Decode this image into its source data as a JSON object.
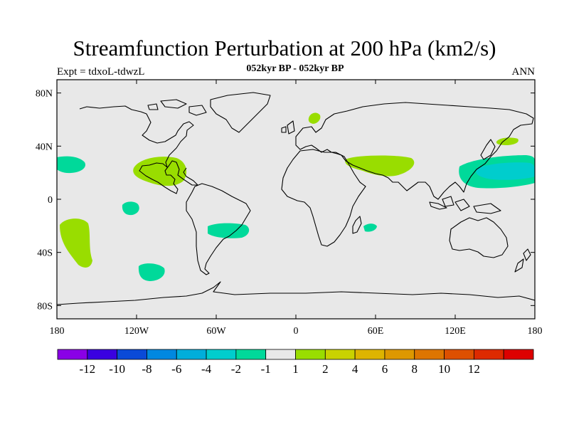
{
  "title": "Streamfunction Perturbation at 200 hPa (km2/s)",
  "left_label": "Expt = tdxoL-tdwzL",
  "center_label": "052kyr BP - 052kyr BP",
  "right_label": "ANN",
  "map": {
    "projection": "cylindrical-equidistant",
    "lon_range": [
      -180,
      180
    ],
    "lat_range": [
      -90,
      90
    ],
    "background_color": "#e8e8e8",
    "coastline_color": "#000000",
    "x_ticks": [
      "180",
      "120W",
      "60W",
      "0",
      "60E",
      "120E",
      "180"
    ],
    "y_ticks": [
      "80N",
      "40N",
      "0",
      "40S",
      "80S"
    ]
  },
  "contour_regions": [
    {
      "name": "north-pacific-west",
      "level": "-2",
      "color": "#00d99a"
    },
    {
      "name": "tropical-pacific-east",
      "level": "-2",
      "color": "#00d99a"
    },
    {
      "name": "south-atlantic",
      "level": "-2",
      "color": "#00d99a"
    },
    {
      "name": "south-pacific-east",
      "level": "-2",
      "color": "#00d99a"
    },
    {
      "name": "madagascar-east",
      "level": "-2",
      "color": "#00d99a"
    },
    {
      "name": "west-pacific",
      "level": "-2",
      "color": "#00d99a"
    },
    {
      "name": "west-pacific-core",
      "level": "-4",
      "color": "#00cdcd"
    },
    {
      "name": "central-america",
      "level": "2",
      "color": "#99dd00"
    },
    {
      "name": "south-pacific-west",
      "level": "2",
      "color": "#99dd00"
    },
    {
      "name": "middle-east",
      "level": "2",
      "color": "#99dd00"
    },
    {
      "name": "scandinavia",
      "level": "2",
      "color": "#99dd00"
    },
    {
      "name": "north-pacific-east",
      "level": "2",
      "color": "#99dd00"
    }
  ],
  "colorbar": {
    "colors": [
      "#8a00e6",
      "#3a00e0",
      "#0a4ad8",
      "#0088e0",
      "#00aedb",
      "#00cdcd",
      "#00d99a",
      "#e8e8e8",
      "#99dd00",
      "#c9d200",
      "#ddb400",
      "#dd9800",
      "#dd7500",
      "#dd5000",
      "#dd2a00",
      "#dd0000"
    ],
    "labels": [
      "-12",
      "-10",
      "-8",
      "-6",
      "-4",
      "-2",
      "-1",
      "1",
      "2",
      "4",
      "6",
      "8",
      "10",
      "12"
    ]
  }
}
